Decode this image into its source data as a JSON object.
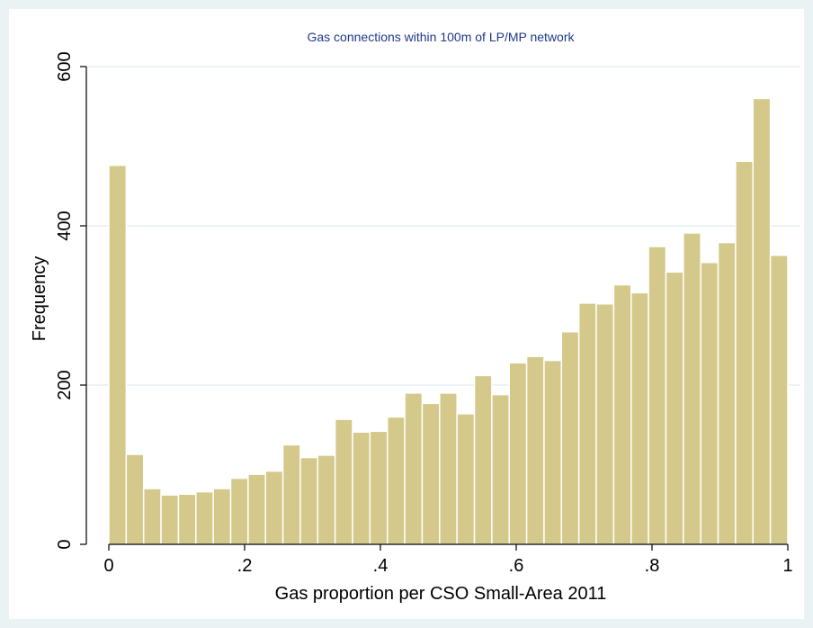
{
  "chart_data": {
    "type": "bar",
    "title": "Gas connections within 100m of LP/MP network",
    "xlabel": "Gas proportion per CSO Small-Area 2011",
    "ylabel": "Frequency",
    "xlim": [
      0,
      1
    ],
    "ylim": [
      0,
      600
    ],
    "xticks": [
      0,
      0.2,
      0.4,
      0.6,
      0.8,
      1
    ],
    "xtick_labels": [
      "0",
      ".2",
      ".4",
      ".6",
      ".8",
      "1"
    ],
    "yticks": [
      0,
      200,
      400,
      600
    ],
    "ytick_labels": [
      "0",
      "200",
      "400",
      "600"
    ],
    "grid": true,
    "bar_color": "#d4c98a",
    "bar_edge_color": "#ffffff",
    "bin_width": 0.02564,
    "values": [
      476,
      113,
      70,
      62,
      63,
      66,
      70,
      83,
      88,
      92,
      125,
      109,
      112,
      157,
      141,
      142,
      160,
      190,
      177,
      190,
      164,
      212,
      188,
      228,
      236,
      231,
      267,
      303,
      302,
      326,
      316,
      374,
      342,
      391,
      354,
      379,
      481,
      560,
      363
    ]
  }
}
